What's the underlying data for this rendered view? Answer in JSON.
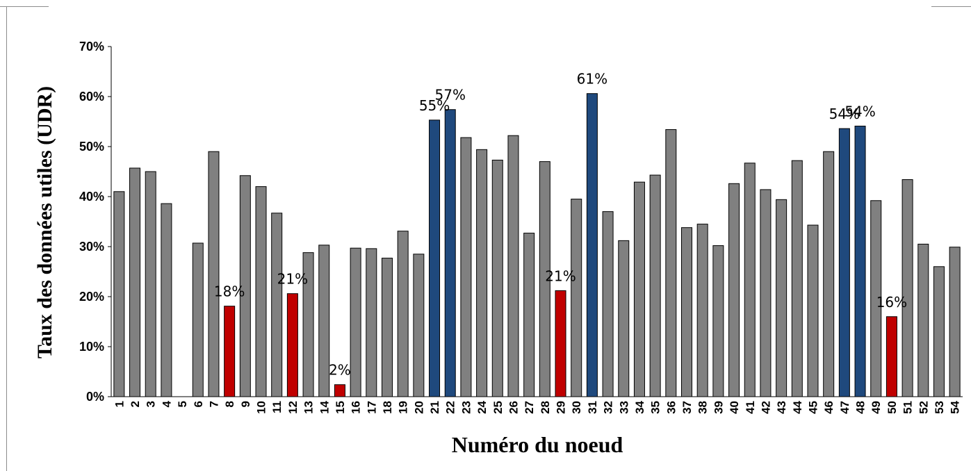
{
  "chart_data": {
    "type": "bar",
    "title": "",
    "xlabel": "Numéro du noeud",
    "ylabel": "Taux des données utiles (UDR)",
    "ylim": [
      0,
      70
    ],
    "yticks": [
      "0%",
      "10%",
      "20%",
      "30%",
      "40%",
      "50%",
      "60%",
      "70%"
    ],
    "grid": false,
    "legend": "none",
    "unit": "%",
    "colors": {
      "normal": "#808080",
      "low": "#c00000",
      "high": "#1f497d",
      "edge": "#000000"
    },
    "categories": [
      "1",
      "2",
      "3",
      "4",
      "5",
      "6",
      "7",
      "8",
      "9",
      "10",
      "11",
      "12",
      "13",
      "14",
      "15",
      "16",
      "17",
      "18",
      "19",
      "20",
      "21",
      "22",
      "23",
      "24",
      "25",
      "26",
      "27",
      "28",
      "29",
      "30",
      "31",
      "32",
      "33",
      "34",
      "35",
      "36",
      "37",
      "38",
      "39",
      "40",
      "41",
      "42",
      "43",
      "44",
      "45",
      "46",
      "47",
      "48",
      "49",
      "50",
      "51",
      "52",
      "53",
      "54"
    ],
    "values": [
      41,
      45.7,
      45,
      38.6,
      0,
      30.7,
      49,
      18.1,
      44.2,
      42,
      36.7,
      20.6,
      28.8,
      30.3,
      2.4,
      29.7,
      29.6,
      27.7,
      33.1,
      28.5,
      55.3,
      57.4,
      51.8,
      49.4,
      47.3,
      52.2,
      32.7,
      47,
      21.2,
      39.5,
      60.6,
      37,
      31.2,
      42.9,
      44.3,
      53.4,
      33.8,
      34.5,
      30.2,
      42.6,
      46.7,
      41.4,
      39.4,
      47.2,
      34.3,
      49,
      53.6,
      54.1,
      39.2,
      16,
      43.4,
      30.5,
      26,
      29.9
    ],
    "highlight": [
      "normal",
      "normal",
      "normal",
      "normal",
      "normal",
      "normal",
      "normal",
      "low",
      "normal",
      "normal",
      "normal",
      "low",
      "normal",
      "normal",
      "low",
      "normal",
      "normal",
      "normal",
      "normal",
      "normal",
      "high",
      "high",
      "normal",
      "normal",
      "normal",
      "normal",
      "normal",
      "normal",
      "low",
      "normal",
      "high",
      "normal",
      "normal",
      "normal",
      "normal",
      "normal",
      "normal",
      "normal",
      "normal",
      "normal",
      "normal",
      "normal",
      "normal",
      "normal",
      "normal",
      "normal",
      "high",
      "high",
      "normal",
      "low",
      "normal",
      "normal",
      "normal",
      "normal"
    ],
    "data_labels": [
      {
        "category": "8",
        "text": "18%"
      },
      {
        "category": "12",
        "text": "21%"
      },
      {
        "category": "15",
        "text": "2%"
      },
      {
        "category": "21",
        "text": "55%"
      },
      {
        "category": "22",
        "text": "57%"
      },
      {
        "category": "29",
        "text": "21%"
      },
      {
        "category": "31",
        "text": "61%"
      },
      {
        "category": "47",
        "text": "54%"
      },
      {
        "category": "48",
        "text": "54%"
      },
      {
        "category": "50",
        "text": "16%"
      }
    ]
  }
}
